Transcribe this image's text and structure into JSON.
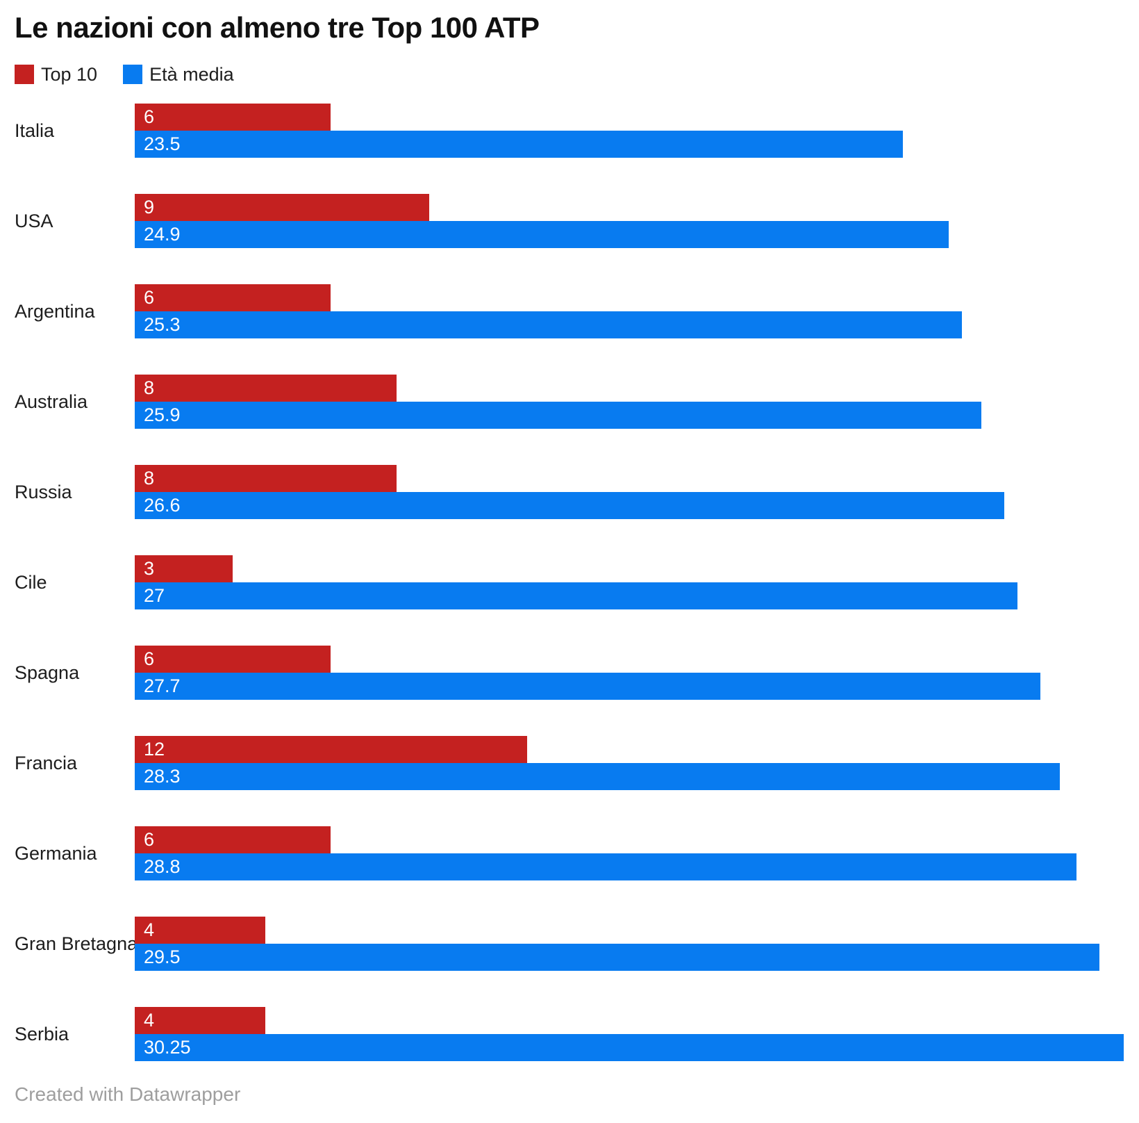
{
  "title": "Le nazioni con almeno tre Top 100 ATP",
  "legend": {
    "items": [
      {
        "label": "Top 10",
        "color": "#c42120"
      },
      {
        "label": "Età media",
        "color": "#087bf0"
      }
    ]
  },
  "footer": {
    "credit": "Created with Datawrapper"
  },
  "colors": {
    "top10": "#c42120",
    "eta_media": "#087bf0",
    "title_text": "#111111",
    "label_text": "#1d1d1d",
    "value_text": "#ffffff",
    "footer_text": "#9e9e9e",
    "background": "#ffffff"
  },
  "chart_data": {
    "type": "bar",
    "orientation": "horizontal",
    "title": "Le nazioni con almeno tre Top 100 ATP",
    "categories": [
      "Italia",
      "USA",
      "Argentina",
      "Australia",
      "Russia",
      "Cile",
      "Spagna",
      "Francia",
      "Germania",
      "Gran Bretagna",
      "Serbia"
    ],
    "series": [
      {
        "name": "Top 10",
        "color": "#c42120",
        "values": [
          6,
          9,
          6,
          8,
          8,
          3,
          6,
          12,
          6,
          4,
          4
        ]
      },
      {
        "name": "Età media",
        "color": "#087bf0",
        "values": [
          23.5,
          24.9,
          25.3,
          25.9,
          26.6,
          27,
          27.7,
          28.3,
          28.8,
          29.5,
          30.25
        ]
      }
    ],
    "x_range": [
      0,
      30.7
    ],
    "grid": false,
    "legend_position": "top",
    "value_labels": "inside-start",
    "xlabel": "",
    "ylabel": ""
  }
}
